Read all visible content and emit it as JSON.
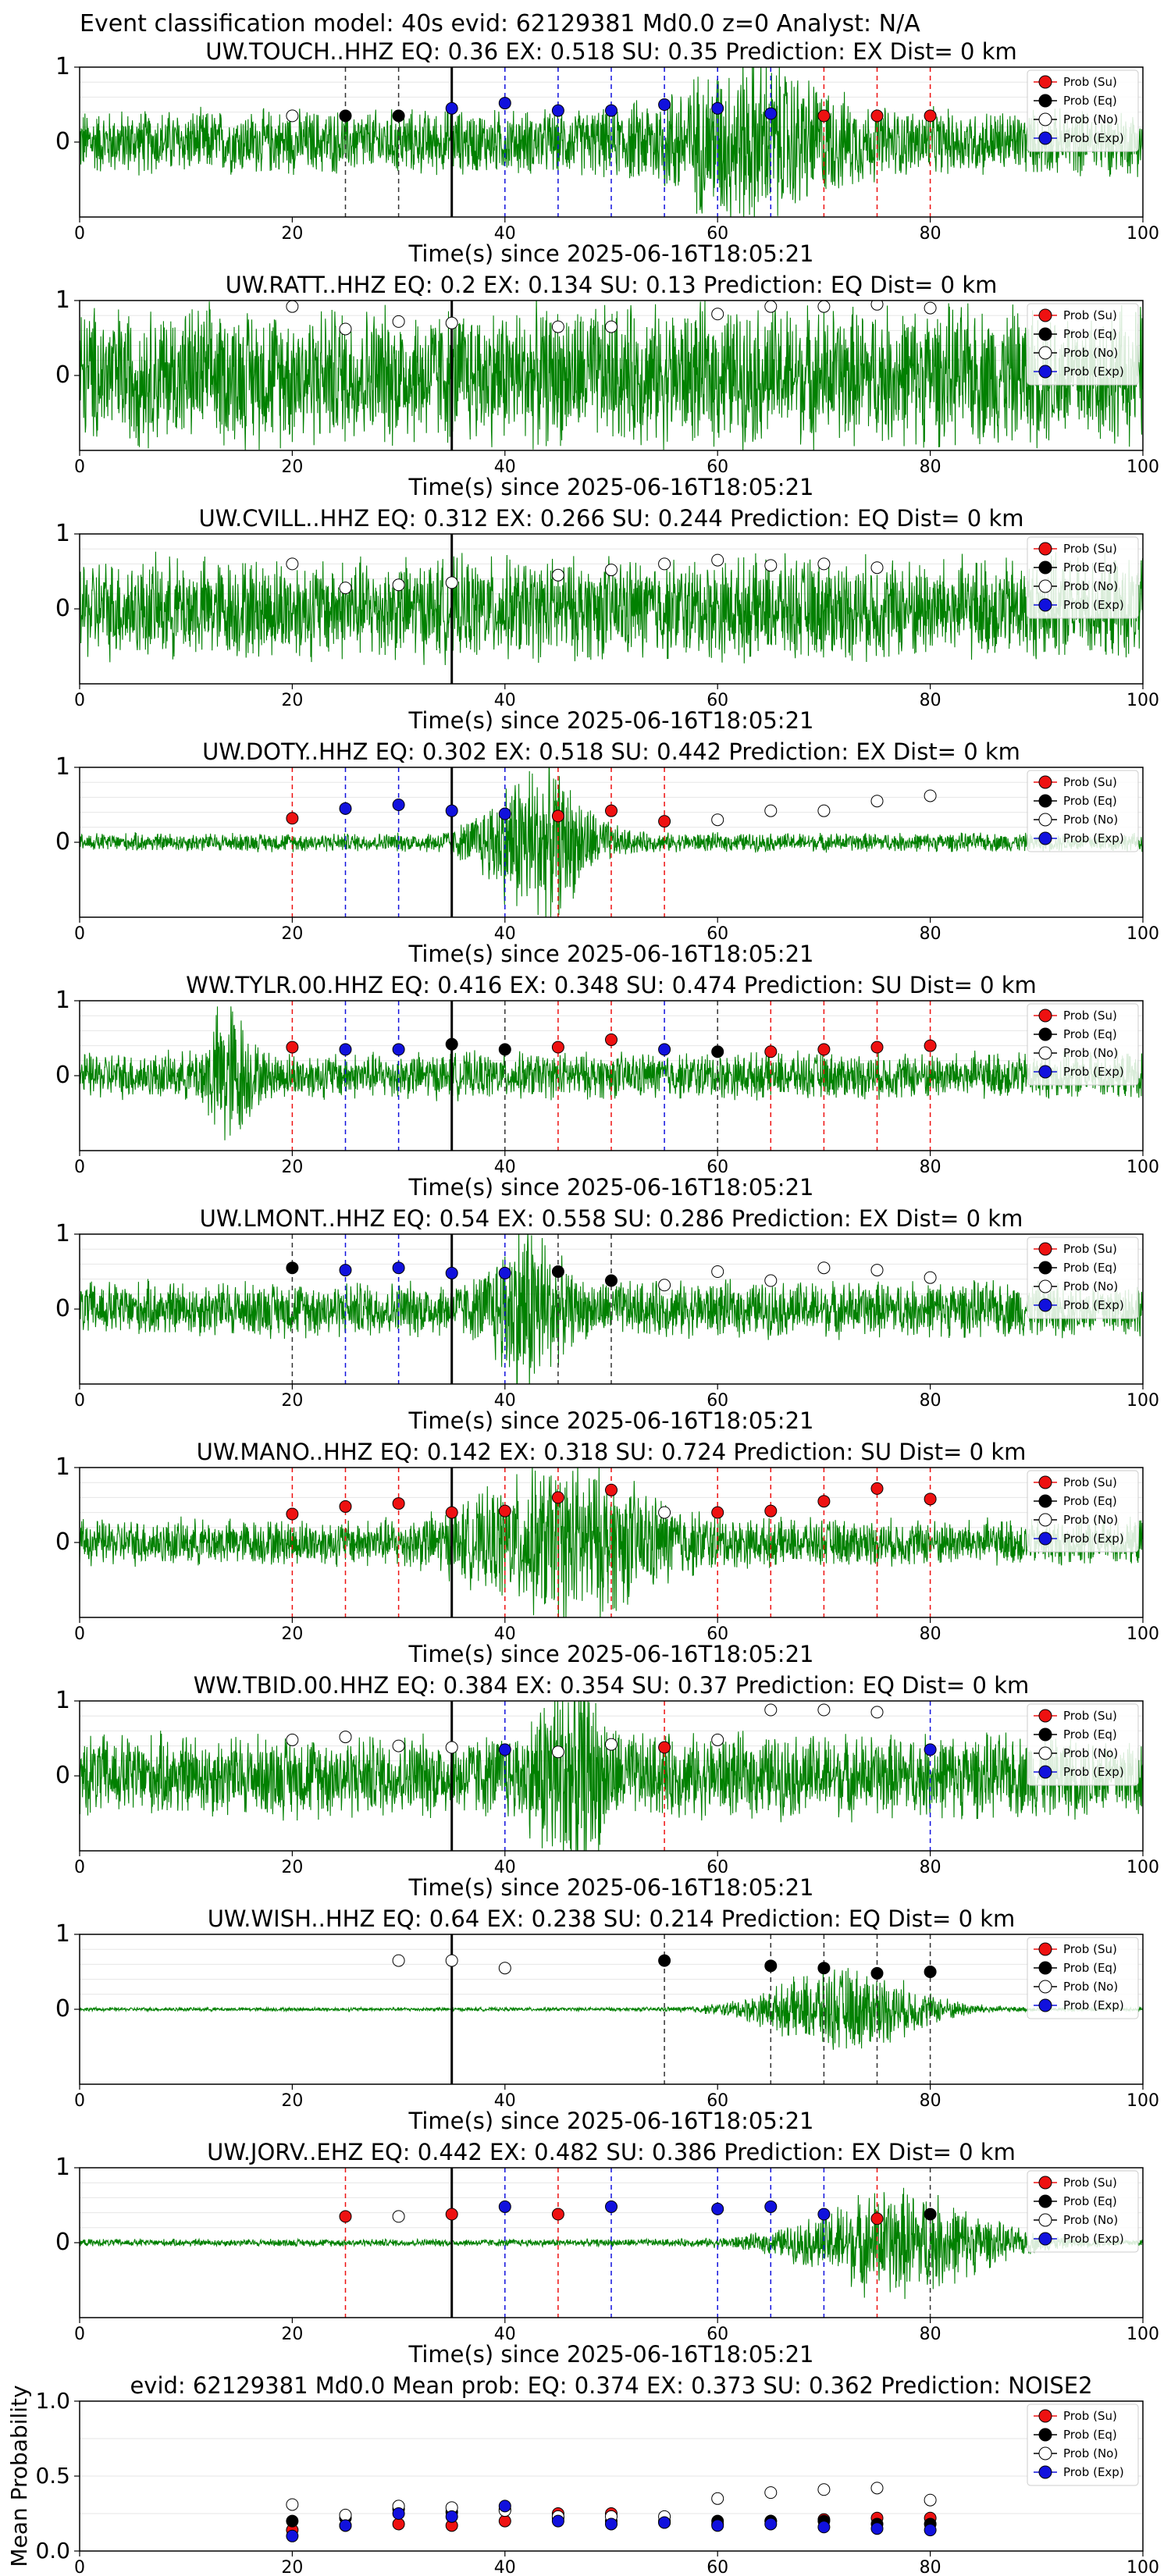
{
  "figure_title": "Event classification model: 40s evid: 62129381 Md0.0 z=0 Analyst: N/A",
  "legend": [
    {
      "label": "Prob (Su)",
      "color": "#ee1111"
    },
    {
      "label": "Prob (Eq)",
      "color": "#000000"
    },
    {
      "label": "Prob (No)",
      "color": "#ffffff"
    },
    {
      "label": "Prob (Exp)",
      "color": "#1111dd"
    }
  ],
  "colors": {
    "waveform": "#008000",
    "su": "#ee1111",
    "eq": "#000000",
    "no": "#ffffff",
    "exp": "#1111dd",
    "event_line": "#000000"
  },
  "chart_data": [
    {
      "type": "scatter",
      "title": "UW.TOUCH..HHZ   EQ: 0.36  EX: 0.518  SU: 0.35   Prediction: EX    Dist= 0 km",
      "xlabel": "Time(s) since 2025-06-16T18:05:21",
      "ylabel": "",
      "xlim": [
        0,
        100
      ],
      "ylim": [
        -1,
        1
      ],
      "xticks": [
        "0",
        "20",
        "40",
        "60",
        "80",
        "100"
      ],
      "yticks": [
        "0",
        "1"
      ],
      "event_x": 35,
      "amp": 0.35,
      "burst": {
        "center": 63,
        "width": 8,
        "gain": 1.7
      },
      "points": [
        [
          20,
          "no",
          0.35
        ],
        [
          25,
          "eq",
          0.35
        ],
        [
          30,
          "eq",
          0.35
        ],
        [
          35,
          "exp",
          0.45
        ],
        [
          40,
          "exp",
          0.52
        ],
        [
          45,
          "exp",
          0.42
        ],
        [
          50,
          "exp",
          0.42
        ],
        [
          55,
          "exp",
          0.5
        ],
        [
          60,
          "exp",
          0.45
        ],
        [
          65,
          "exp",
          0.38
        ],
        [
          70,
          "su",
          0.35
        ],
        [
          75,
          "su",
          0.35
        ],
        [
          80,
          "su",
          0.35
        ]
      ]
    },
    {
      "type": "scatter",
      "title": "UW.RATT..HHZ   EQ: 0.2  EX: 0.134  SU: 0.13   Prediction: EQ    Dist= 0 km",
      "xlabel": "Time(s) since 2025-06-16T18:05:21",
      "ylabel": "",
      "xlim": [
        0,
        100
      ],
      "ylim": [
        -1,
        1
      ],
      "xticks": [
        "0",
        "20",
        "40",
        "60",
        "80",
        "100"
      ],
      "yticks": [
        "0",
        "1"
      ],
      "event_x": 35,
      "amp": 0.75,
      "burst": {
        "center": 0,
        "width": 0,
        "gain": 0
      },
      "points": [
        [
          20,
          "no",
          0.92
        ],
        [
          25,
          "no",
          0.62
        ],
        [
          30,
          "no",
          0.72
        ],
        [
          35,
          "no",
          0.7
        ],
        [
          45,
          "no",
          0.65
        ],
        [
          50,
          "no",
          0.65
        ],
        [
          60,
          "no",
          0.82
        ],
        [
          65,
          "no",
          0.92
        ],
        [
          70,
          "no",
          0.92
        ],
        [
          75,
          "no",
          0.95
        ],
        [
          80,
          "no",
          0.9
        ]
      ]
    },
    {
      "type": "scatter",
      "title": "UW.CVILL..HHZ   EQ: 0.312  EX: 0.266  SU: 0.244   Prediction: EQ    Dist= 0 km",
      "xlabel": "Time(s) since 2025-06-16T18:05:21",
      "ylabel": "",
      "xlim": [
        0,
        100
      ],
      "ylim": [
        -1,
        1
      ],
      "xticks": [
        "0",
        "20",
        "40",
        "60",
        "80",
        "100"
      ],
      "yticks": [
        "0",
        "1"
      ],
      "event_x": 35,
      "amp": 0.55,
      "burst": {
        "center": 0,
        "width": 0,
        "gain": 0
      },
      "points": [
        [
          20,
          "no",
          0.6
        ],
        [
          25,
          "no",
          0.28
        ],
        [
          30,
          "no",
          0.32
        ],
        [
          35,
          "no",
          0.35
        ],
        [
          45,
          "no",
          0.45
        ],
        [
          50,
          "no",
          0.52
        ],
        [
          55,
          "no",
          0.6
        ],
        [
          60,
          "no",
          0.65
        ],
        [
          65,
          "no",
          0.58
        ],
        [
          70,
          "no",
          0.6
        ],
        [
          75,
          "no",
          0.55
        ]
      ]
    },
    {
      "type": "scatter",
      "title": "UW.DOTY..HHZ   EQ: 0.302  EX: 0.518  SU: 0.442   Prediction: EX    Dist= 0 km",
      "xlabel": "Time(s) since 2025-06-16T18:05:21",
      "ylabel": "",
      "xlim": [
        0,
        100
      ],
      "ylim": [
        -1,
        1
      ],
      "xticks": [
        "0",
        "20",
        "40",
        "60",
        "80",
        "100"
      ],
      "yticks": [
        "0",
        "1"
      ],
      "event_x": 35,
      "amp": 0.1,
      "burst": {
        "center": 43,
        "width": 5,
        "gain": 8
      },
      "points": [
        [
          20,
          "su",
          0.32
        ],
        [
          25,
          "exp",
          0.45
        ],
        [
          30,
          "exp",
          0.5
        ],
        [
          35,
          "exp",
          0.42
        ],
        [
          40,
          "exp",
          0.38
        ],
        [
          45,
          "su",
          0.35
        ],
        [
          50,
          "su",
          0.42
        ],
        [
          55,
          "su",
          0.28
        ],
        [
          60,
          "no",
          0.3
        ],
        [
          65,
          "no",
          0.42
        ],
        [
          70,
          "no",
          0.42
        ],
        [
          75,
          "no",
          0.55
        ],
        [
          80,
          "no",
          0.62
        ]
      ]
    },
    {
      "type": "scatter",
      "title": "WW.TYLR.00.HHZ   EQ: 0.416  EX: 0.348  SU: 0.474   Prediction: SU    Dist= 0 km",
      "xlabel": "Time(s) since 2025-06-16T18:05:21",
      "ylabel": "",
      "xlim": [
        0,
        100
      ],
      "ylim": [
        -1,
        1
      ],
      "xticks": [
        "0",
        "20",
        "40",
        "60",
        "80",
        "100"
      ],
      "yticks": [
        "0",
        "1"
      ],
      "event_x": 35,
      "amp": 0.25,
      "burst": {
        "center": 14,
        "width": 2,
        "gain": 2.5
      },
      "points": [
        [
          20,
          "su",
          0.38
        ],
        [
          25,
          "exp",
          0.35
        ],
        [
          30,
          "exp",
          0.35
        ],
        [
          35,
          "eq",
          0.42
        ],
        [
          40,
          "eq",
          0.35
        ],
        [
          45,
          "su",
          0.38
        ],
        [
          50,
          "su",
          0.48
        ],
        [
          55,
          "exp",
          0.35
        ],
        [
          60,
          "eq",
          0.32
        ],
        [
          65,
          "su",
          0.32
        ],
        [
          70,
          "su",
          0.35
        ],
        [
          75,
          "su",
          0.38
        ],
        [
          80,
          "su",
          0.4
        ]
      ]
    },
    {
      "type": "scatter",
      "title": "UW.LMONT..HHZ   EQ: 0.54  EX: 0.558  SU: 0.286   Prediction: EX    Dist= 0 km",
      "xlabel": "Time(s) since 2025-06-16T18:05:21",
      "ylabel": "",
      "xlim": [
        0,
        100
      ],
      "ylim": [
        -1,
        1
      ],
      "xticks": [
        "0",
        "20",
        "40",
        "60",
        "80",
        "100"
      ],
      "yticks": [
        "0",
        "1"
      ],
      "event_x": 35,
      "amp": 0.3,
      "burst": {
        "center": 42,
        "width": 3,
        "gain": 2.5
      },
      "points": [
        [
          20,
          "eq",
          0.55
        ],
        [
          25,
          "exp",
          0.52
        ],
        [
          30,
          "exp",
          0.55
        ],
        [
          35,
          "exp",
          0.48
        ],
        [
          40,
          "exp",
          0.48
        ],
        [
          45,
          "eq",
          0.5
        ],
        [
          50,
          "eq",
          0.38
        ],
        [
          55,
          "no",
          0.32
        ],
        [
          60,
          "no",
          0.5
        ],
        [
          65,
          "no",
          0.38
        ],
        [
          70,
          "no",
          0.55
        ],
        [
          75,
          "no",
          0.52
        ],
        [
          80,
          "no",
          0.42
        ]
      ]
    },
    {
      "type": "scatter",
      "title": "UW.MANO..HHZ   EQ: 0.142  EX: 0.318  SU: 0.724   Prediction: SU    Dist= 0 km",
      "xlabel": "Time(s) since 2025-06-16T18:05:21",
      "ylabel": "",
      "xlim": [
        0,
        100
      ],
      "ylim": [
        -1,
        1
      ],
      "xticks": [
        "0",
        "20",
        "40",
        "60",
        "80",
        "100"
      ],
      "yticks": [
        "0",
        "1"
      ],
      "event_x": 35,
      "amp": 0.25,
      "burst": {
        "center": 46,
        "width": 9,
        "gain": 2.5
      },
      "points": [
        [
          20,
          "su",
          0.38
        ],
        [
          25,
          "su",
          0.48
        ],
        [
          30,
          "su",
          0.52
        ],
        [
          35,
          "su",
          0.4
        ],
        [
          40,
          "su",
          0.42
        ],
        [
          45,
          "su",
          0.6
        ],
        [
          50,
          "su",
          0.7
        ],
        [
          55,
          "no",
          0.4
        ],
        [
          60,
          "su",
          0.4
        ],
        [
          65,
          "su",
          0.42
        ],
        [
          70,
          "su",
          0.55
        ],
        [
          75,
          "su",
          0.72
        ],
        [
          80,
          "su",
          0.58
        ]
      ]
    },
    {
      "type": "scatter",
      "title": "WW.TBID.00.HHZ   EQ: 0.384  EX: 0.354  SU: 0.37   Prediction: EQ    Dist= 0 km",
      "xlabel": "Time(s) since 2025-06-16T18:05:21",
      "ylabel": "",
      "xlim": [
        0,
        100
      ],
      "ylim": [
        -1,
        1
      ],
      "xticks": [
        "0",
        "20",
        "40",
        "60",
        "80",
        "100"
      ],
      "yticks": [
        "0",
        "1"
      ],
      "event_x": 35,
      "amp": 0.45,
      "burst": {
        "center": 46,
        "width": 3,
        "gain": 2
      },
      "points": [
        [
          20,
          "no",
          0.48
        ],
        [
          25,
          "no",
          0.52
        ],
        [
          30,
          "no",
          0.4
        ],
        [
          35,
          "no",
          0.38
        ],
        [
          40,
          "exp",
          0.35
        ],
        [
          45,
          "no",
          0.32
        ],
        [
          50,
          "no",
          0.42
        ],
        [
          55,
          "su",
          0.38
        ],
        [
          60,
          "no",
          0.48
        ],
        [
          65,
          "no",
          0.88
        ],
        [
          70,
          "no",
          0.88
        ],
        [
          75,
          "no",
          0.85
        ],
        [
          80,
          "exp",
          0.35
        ]
      ]
    },
    {
      "type": "scatter",
      "title": "UW.WISH..HHZ   EQ: 0.64  EX: 0.238  SU: 0.214   Prediction: EQ    Dist= 0 km",
      "xlabel": "Time(s) since 2025-06-16T18:05:21",
      "ylabel": "",
      "xlim": [
        0,
        100
      ],
      "ylim": [
        -1,
        1
      ],
      "xticks": [
        "0",
        "20",
        "40",
        "60",
        "80",
        "100"
      ],
      "yticks": [
        "0",
        "1"
      ],
      "event_x": 35,
      "amp": 0.02,
      "burst": {
        "center": 72,
        "width": 8,
        "gain": 22
      },
      "points": [
        [
          30,
          "no",
          0.65
        ],
        [
          35,
          "no",
          0.65
        ],
        [
          40,
          "no",
          0.55
        ],
        [
          55,
          "eq",
          0.65
        ],
        [
          65,
          "eq",
          0.58
        ],
        [
          70,
          "eq",
          0.55
        ],
        [
          75,
          "eq",
          0.48
        ],
        [
          80,
          "eq",
          0.5
        ]
      ]
    },
    {
      "type": "scatter",
      "title": "UW.JORV..EHZ   EQ: 0.442  EX: 0.482  SU: 0.386   Prediction: EX    Dist= 0 km",
      "xlabel": "Time(s) since 2025-06-16T18:05:21",
      "ylabel": "",
      "xlim": [
        0,
        100
      ],
      "ylim": [
        -1,
        1
      ],
      "xticks": [
        "0",
        "20",
        "40",
        "60",
        "80",
        "100"
      ],
      "yticks": [
        "0",
        "1"
      ],
      "event_x": 35,
      "amp": 0.04,
      "burst": {
        "center": 77,
        "width": 9,
        "gain": 14
      },
      "points": [
        [
          25,
          "su",
          0.35
        ],
        [
          30,
          "no",
          0.35
        ],
        [
          35,
          "su",
          0.38
        ],
        [
          40,
          "exp",
          0.48
        ],
        [
          45,
          "su",
          0.38
        ],
        [
          50,
          "exp",
          0.48
        ],
        [
          60,
          "exp",
          0.45
        ],
        [
          65,
          "exp",
          0.48
        ],
        [
          70,
          "exp",
          0.38
        ],
        [
          75,
          "su",
          0.32
        ],
        [
          80,
          "eq",
          0.38
        ]
      ]
    },
    {
      "type": "scatter",
      "title": "evid: 62129381  Md0.0   Mean prob:   EQ: 0.374  EX: 0.373  SU: 0.362   Prediction: NOISE2",
      "xlabel": "",
      "ylabel": "Mean Probability",
      "xlim": [
        0,
        100
      ],
      "ylim": [
        0,
        1
      ],
      "xticks": [
        "0",
        "20",
        "40",
        "60",
        "80",
        "100"
      ],
      "yticks": [
        "0.0",
        "0.5",
        "1.0"
      ],
      "series": [
        {
          "name": "Prob (Su)",
          "key": "su",
          "x": [
            20,
            25,
            30,
            35,
            40,
            45,
            50,
            55,
            60,
            65,
            70,
            75,
            80
          ],
          "values": [
            0.14,
            0.17,
            0.18,
            0.17,
            0.2,
            0.25,
            0.25,
            0.19,
            0.18,
            0.2,
            0.21,
            0.22,
            0.22
          ]
        },
        {
          "name": "Prob (Eq)",
          "key": "eq",
          "x": [
            20,
            25,
            30,
            35,
            40,
            45,
            50,
            55,
            60,
            65,
            70,
            75,
            80
          ],
          "values": [
            0.2,
            0.22,
            0.28,
            0.26,
            0.28,
            0.22,
            0.2,
            0.2,
            0.2,
            0.2,
            0.2,
            0.18,
            0.18
          ]
        },
        {
          "name": "Prob (No)",
          "key": "no",
          "x": [
            20,
            25,
            30,
            35,
            40,
            45,
            50,
            55,
            60,
            65,
            70,
            75,
            80
          ],
          "values": [
            0.31,
            0.24,
            0.3,
            0.29,
            0.27,
            0.23,
            0.23,
            0.23,
            0.35,
            0.39,
            0.41,
            0.42,
            0.34
          ]
        },
        {
          "name": "Prob (Exp)",
          "key": "exp",
          "x": [
            20,
            25,
            30,
            35,
            40,
            45,
            50,
            55,
            60,
            65,
            70,
            75,
            80
          ],
          "values": [
            0.1,
            0.17,
            0.25,
            0.23,
            0.3,
            0.2,
            0.18,
            0.19,
            0.17,
            0.18,
            0.16,
            0.15,
            0.14
          ]
        }
      ]
    }
  ]
}
